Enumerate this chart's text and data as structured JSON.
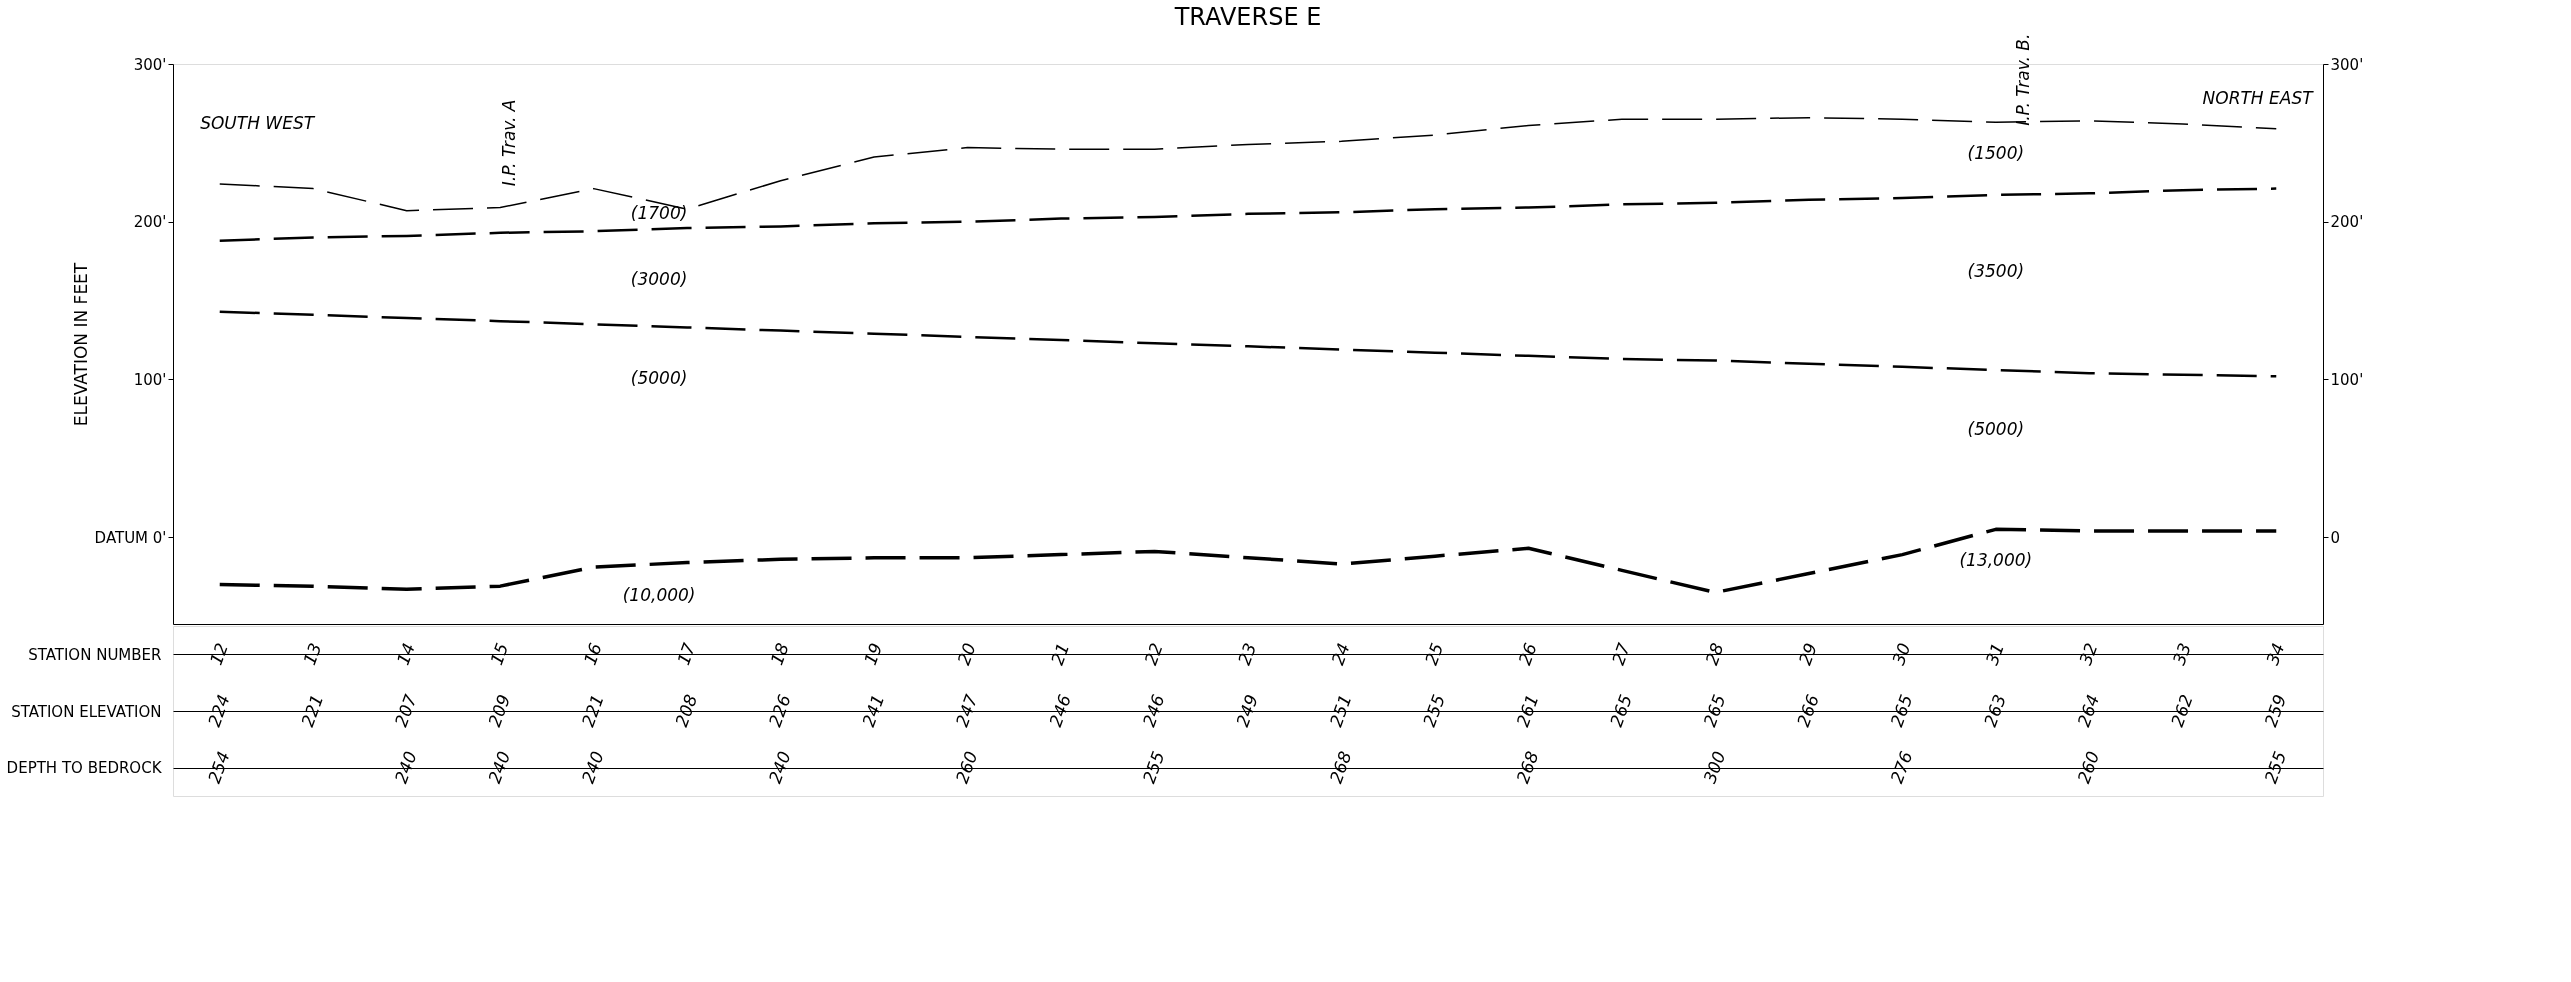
{
  "chart_data": {
    "type": "line",
    "title": "TRAVERSE E",
    "ylabel": "ELEVATION    IN    FEET",
    "categories": [
      "12",
      "13",
      "14",
      "15",
      "16",
      "17",
      "18",
      "19",
      "20",
      "21",
      "22",
      "23",
      "24",
      "25",
      "26",
      "27",
      "28",
      "29",
      "30",
      "31",
      "32",
      "33",
      "34"
    ],
    "series": [
      {
        "color": "#000000",
        "line_style": "dashed",
        "values": [
          224,
          221,
          207,
          209,
          221,
          208,
          226,
          241,
          247,
          246,
          246,
          249,
          251,
          255,
          261,
          265,
          265,
          266,
          265,
          263,
          264,
          262,
          259
        ],
        "value_labels": [
          "224",
          "221",
          "207",
          "209",
          "221",
          "208",
          "226",
          "241",
          "247",
          "246",
          "246",
          "249",
          "251",
          "255",
          "261",
          "265",
          "265",
          "266",
          "265",
          "263",
          "264",
          "262",
          "259"
        ]
      },
      {
        "color": "#000000",
        "line_style": "dashed",
        "values": [
          188,
          190,
          191,
          193,
          194,
          196,
          197,
          199,
          200,
          202,
          203,
          205,
          206,
          208,
          209,
          211,
          212,
          214,
          215,
          217,
          218,
          220,
          221
        ]
      },
      {
        "color": "#000000",
        "line_style": "dashed",
        "axis": "y2",
        "values": [
          143,
          141,
          139,
          137,
          135,
          133,
          131,
          129,
          127,
          125,
          123,
          121,
          119,
          117,
          115,
          113,
          112,
          110,
          108,
          106,
          104,
          103,
          102
        ]
      },
      {
        "color": "#000000",
        "line_style": "dashed",
        "values": [
          -30,
          -31,
          -33,
          -31,
          -19,
          -16,
          -14,
          -13,
          -13,
          -11,
          -9,
          -13,
          -17,
          -12,
          -7,
          -21,
          -35,
          -23,
          -11,
          5,
          4,
          4,
          4
        ]
      }
    ],
    "ylim": [
      -55,
      300
    ],
    "yticks": [
      {
        "value": 300,
        "label": "300'"
      },
      {
        "value": 200,
        "label": "200'"
      },
      {
        "value": 100,
        "label": "100'"
      },
      {
        "value": 0,
        "label": "DATUM 0'"
      }
    ],
    "y2lim": [
      -55,
      300
    ],
    "y2ticks": [
      {
        "value": 300,
        "label": "300'"
      },
      {
        "value": 200,
        "label": "200'"
      },
      {
        "value": 100,
        "label": "100'"
      },
      0
    ],
    "grid": false,
    "annotations": [
      "STATION  NUMBER",
      "STATION  ELEVATION",
      "DEPTH TO BEDROCK",
      "SOUTH WEST",
      "NORTH EAST",
      "I.P. Trav. A",
      "I.P. Trav. B.",
      "(1700)",
      "(3000)",
      "(5000)",
      "(10,000)",
      "(1500)",
      "(3500)",
      "(5000)",
      "(13,000)",
      "254",
      "240",
      "240",
      "240",
      "240",
      "260",
      "255",
      "268",
      "268",
      "300",
      "276",
      "260",
      "255"
    ]
  }
}
